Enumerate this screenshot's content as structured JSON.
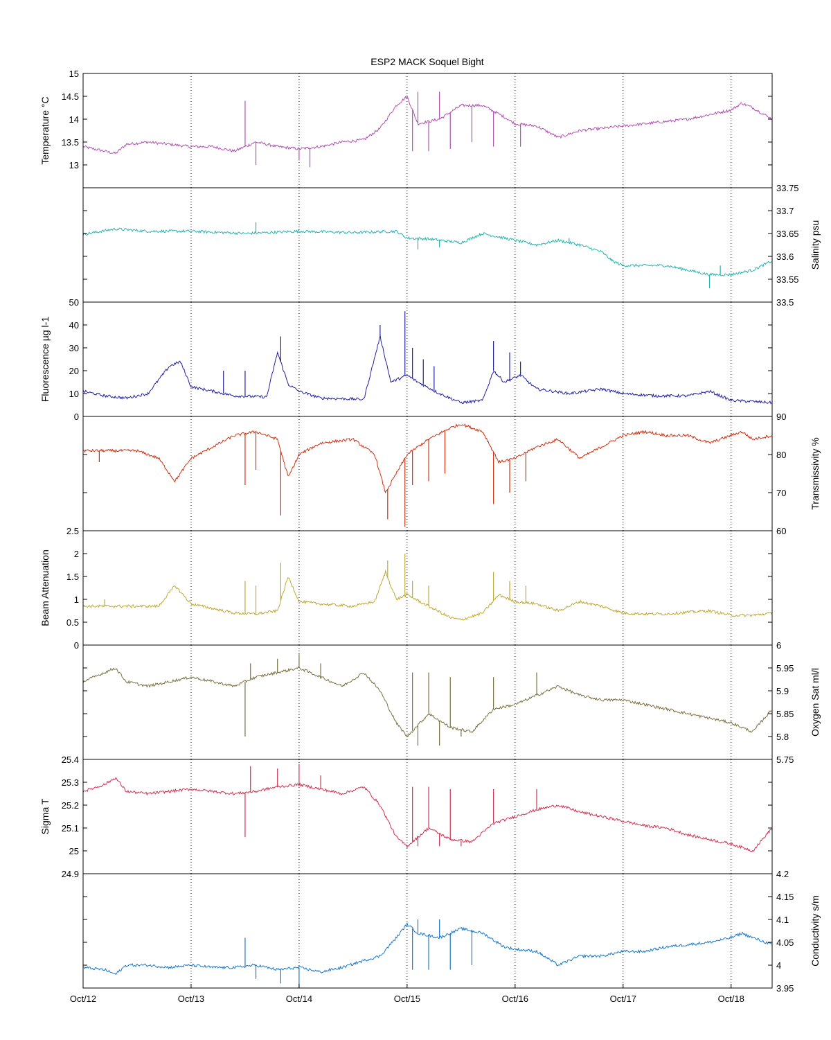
{
  "chart_data": {
    "type": "line",
    "title": "ESP2 MACK  Soquel Bight",
    "x_tick_labels": [
      "Oct/12",
      "Oct/13",
      "Oct/14",
      "Oct/15",
      "Oct/16",
      "Oct/17",
      "Oct/18"
    ],
    "xlim_days": [
      0,
      6.38
    ],
    "grid": "vertical dotted lines at each x tick",
    "panels": [
      {
        "ylabel": "Temperature °C",
        "axis_side": "left",
        "color": "#b050b0",
        "ylim": [
          12.5,
          15
        ],
        "yticks": [
          13,
          13.5,
          14,
          14.5,
          15
        ],
        "x": [
          0,
          0.1,
          0.2,
          0.3,
          0.4,
          0.6,
          0.8,
          1.0,
          1.2,
          1.4,
          1.6,
          1.8,
          2.0,
          2.2,
          2.4,
          2.6,
          2.75,
          2.9,
          3.0,
          3.1,
          3.3,
          3.5,
          3.7,
          3.9,
          4.0,
          4.2,
          4.4,
          4.6,
          4.8,
          5.0,
          5.2,
          5.4,
          5.6,
          5.8,
          6.0,
          6.1,
          6.2,
          6.38
        ],
        "y": [
          13.4,
          13.35,
          13.3,
          13.25,
          13.45,
          13.5,
          13.45,
          13.4,
          13.4,
          13.3,
          13.5,
          13.4,
          13.35,
          13.4,
          13.5,
          13.55,
          13.8,
          14.3,
          14.5,
          13.9,
          14.0,
          14.3,
          14.3,
          14.05,
          13.9,
          13.85,
          13.6,
          13.75,
          13.8,
          13.85,
          13.9,
          13.95,
          14.0,
          14.1,
          14.2,
          14.35,
          14.25,
          14.0
        ],
        "spikes": [
          [
            1.5,
            14.4
          ],
          [
            1.6,
            13.0
          ],
          [
            2.0,
            13.1
          ],
          [
            2.1,
            12.95
          ],
          [
            3.05,
            13.3
          ],
          [
            3.1,
            14.6
          ],
          [
            3.2,
            13.3
          ],
          [
            3.3,
            14.6
          ],
          [
            3.4,
            13.35
          ],
          [
            3.6,
            13.5
          ],
          [
            3.8,
            13.4
          ],
          [
            4.05,
            13.4
          ]
        ]
      },
      {
        "ylabel": "Salinity psu",
        "axis_side": "right",
        "color": "#28b4b0",
        "ylim": [
          33.5,
          33.75
        ],
        "yticks": [
          33.5,
          33.55,
          33.6,
          33.65,
          33.7,
          33.75
        ],
        "x": [
          0,
          0.3,
          0.6,
          1.0,
          1.5,
          2.0,
          2.5,
          2.9,
          3.0,
          3.2,
          3.5,
          3.7,
          3.9,
          4.2,
          4.4,
          4.6,
          4.8,
          4.9,
          5.0,
          5.2,
          5.4,
          5.6,
          5.8,
          6.0,
          6.2,
          6.38
        ],
        "y": [
          33.648,
          33.66,
          33.655,
          33.655,
          33.65,
          33.655,
          33.652,
          33.655,
          33.64,
          33.638,
          33.63,
          33.65,
          33.64,
          33.625,
          33.635,
          33.625,
          33.61,
          33.59,
          33.58,
          33.58,
          33.58,
          33.57,
          33.56,
          33.56,
          33.57,
          33.59
        ],
        "spikes": [
          [
            1.6,
            33.675
          ],
          [
            3.1,
            33.615
          ],
          [
            3.3,
            33.62
          ],
          [
            4.5,
            33.64
          ],
          [
            5.8,
            33.53
          ],
          [
            5.9,
            33.58
          ]
        ]
      },
      {
        "ylabel": "Fluorescence µg l-1",
        "axis_side": "left",
        "color": "#2020a0",
        "ylim": [
          0,
          50
        ],
        "yticks": [
          0,
          10,
          20,
          30,
          40,
          50
        ],
        "x": [
          0,
          0.2,
          0.4,
          0.6,
          0.8,
          0.9,
          1.0,
          1.2,
          1.4,
          1.7,
          1.8,
          1.9,
          2.0,
          2.2,
          2.6,
          2.75,
          2.85,
          3.0,
          3.1,
          3.3,
          3.5,
          3.7,
          3.8,
          3.9,
          4.05,
          4.2,
          4.5,
          4.8,
          5.0,
          5.3,
          5.6,
          5.8,
          6.0,
          6.2,
          6.38
        ],
        "y": [
          11,
          9,
          8,
          10,
          22,
          24,
          13,
          11,
          9,
          8.5,
          28,
          14,
          11,
          8,
          7.5,
          35,
          15,
          18,
          15,
          10,
          6,
          7,
          20,
          15,
          18,
          12,
          10,
          12,
          10,
          9,
          9,
          11,
          7,
          6.5,
          6
        ],
        "spikes": [
          [
            1.3,
            20
          ],
          [
            1.5,
            20
          ],
          [
            1.83,
            35
          ],
          [
            2.75,
            40
          ],
          [
            2.98,
            46
          ],
          [
            3.05,
            30
          ],
          [
            3.15,
            25
          ],
          [
            3.25,
            22
          ],
          [
            3.8,
            33
          ],
          [
            3.95,
            28
          ],
          [
            4.05,
            24
          ]
        ]
      },
      {
        "ylabel": "Transmissivity %",
        "axis_side": "right",
        "color": "#d03010",
        "ylim": [
          60,
          90
        ],
        "yticks": [
          60,
          70,
          80,
          90
        ],
        "x": [
          0,
          0.3,
          0.5,
          0.7,
          0.85,
          1.0,
          1.2,
          1.4,
          1.6,
          1.8,
          1.9,
          2.0,
          2.2,
          2.5,
          2.7,
          2.8,
          3.0,
          3.2,
          3.4,
          3.5,
          3.7,
          3.85,
          4.0,
          4.2,
          4.4,
          4.6,
          4.8,
          5.0,
          5.2,
          5.4,
          5.6,
          5.8,
          6.0,
          6.1,
          6.2,
          6.38
        ],
        "y": [
          81,
          81,
          81,
          79,
          73,
          79,
          82,
          85,
          86,
          84,
          74,
          80,
          83,
          84,
          80,
          70,
          80,
          84,
          87,
          88,
          86,
          78,
          79,
          82,
          84,
          79,
          82,
          85,
          86,
          85,
          85,
          83,
          85,
          86,
          84,
          85
        ],
        "spikes": [
          [
            0.15,
            78
          ],
          [
            1.5,
            72
          ],
          [
            1.6,
            76
          ],
          [
            1.83,
            64
          ],
          [
            2.82,
            63
          ],
          [
            2.98,
            61
          ],
          [
            3.05,
            72
          ],
          [
            3.2,
            73
          ],
          [
            3.35,
            75
          ],
          [
            3.8,
            67
          ],
          [
            3.95,
            70
          ],
          [
            4.1,
            73
          ]
        ]
      },
      {
        "ylabel": "Beam Attenuation",
        "axis_side": "left",
        "color": "#c0a830",
        "ylim": [
          0,
          2.5
        ],
        "yticks": [
          0,
          0.5,
          1,
          1.5,
          2,
          2.5
        ],
        "x": [
          0,
          0.3,
          0.5,
          0.7,
          0.85,
          1.0,
          1.2,
          1.4,
          1.6,
          1.8,
          1.9,
          2.0,
          2.2,
          2.5,
          2.7,
          2.8,
          2.9,
          3.0,
          3.2,
          3.4,
          3.5,
          3.7,
          3.85,
          4.0,
          4.2,
          4.4,
          4.6,
          4.8,
          5.0,
          5.2,
          5.4,
          5.6,
          5.8,
          6.0,
          6.2,
          6.38
        ],
        "y": [
          0.85,
          0.85,
          0.85,
          0.85,
          1.3,
          0.9,
          0.8,
          0.7,
          0.68,
          0.75,
          1.5,
          0.95,
          0.9,
          0.85,
          0.95,
          1.6,
          1.0,
          1.1,
          0.85,
          0.6,
          0.55,
          0.7,
          1.1,
          0.95,
          0.9,
          0.75,
          0.95,
          0.85,
          0.7,
          0.68,
          0.68,
          0.72,
          0.75,
          0.65,
          0.65,
          0.7
        ],
        "spikes": [
          [
            0.2,
            1.0
          ],
          [
            1.5,
            1.4
          ],
          [
            1.6,
            1.3
          ],
          [
            1.83,
            1.8
          ],
          [
            2.82,
            1.85
          ],
          [
            2.98,
            2.0
          ],
          [
            3.05,
            1.4
          ],
          [
            3.2,
            1.3
          ],
          [
            3.8,
            1.6
          ],
          [
            3.95,
            1.4
          ],
          [
            4.1,
            1.3
          ]
        ]
      },
      {
        "ylabel": "Oxygen Sat ml/l",
        "axis_side": "right",
        "color": "#7a7040",
        "ylim": [
          5.75,
          6
        ],
        "yticks": [
          5.75,
          5.8,
          5.85,
          5.9,
          5.95,
          6
        ],
        "x": [
          0,
          0.2,
          0.3,
          0.4,
          0.6,
          0.8,
          1.0,
          1.2,
          1.4,
          1.6,
          1.8,
          2.0,
          2.2,
          2.4,
          2.6,
          2.75,
          2.9,
          3.0,
          3.2,
          3.4,
          3.6,
          3.8,
          4.0,
          4.2,
          4.4,
          4.6,
          4.8,
          5.0,
          5.2,
          5.4,
          5.6,
          5.8,
          6.0,
          6.2,
          6.38
        ],
        "y": [
          5.92,
          5.94,
          5.95,
          5.92,
          5.91,
          5.92,
          5.93,
          5.92,
          5.91,
          5.93,
          5.94,
          5.95,
          5.93,
          5.91,
          5.94,
          5.9,
          5.83,
          5.8,
          5.85,
          5.82,
          5.81,
          5.86,
          5.87,
          5.89,
          5.91,
          5.89,
          5.88,
          5.88,
          5.87,
          5.86,
          5.85,
          5.84,
          5.83,
          5.81,
          5.86
        ],
        "spikes": [
          [
            1.5,
            5.8
          ],
          [
            1.55,
            5.96
          ],
          [
            1.8,
            5.97
          ],
          [
            2.0,
            5.98
          ],
          [
            2.2,
            5.96
          ],
          [
            3.05,
            5.94
          ],
          [
            3.1,
            5.78
          ],
          [
            3.2,
            5.94
          ],
          [
            3.3,
            5.78
          ],
          [
            3.4,
            5.93
          ],
          [
            3.5,
            5.8
          ],
          [
            3.8,
            5.93
          ],
          [
            4.2,
            5.94
          ]
        ]
      },
      {
        "ylabel": "Sigma T",
        "axis_side": "left",
        "color": "#d03050",
        "ylim": [
          24.9,
          25.4
        ],
        "yticks": [
          24.9,
          25,
          25.1,
          25.2,
          25.3,
          25.4
        ],
        "x": [
          0,
          0.2,
          0.3,
          0.4,
          0.6,
          0.8,
          1.0,
          1.2,
          1.4,
          1.6,
          1.8,
          2.0,
          2.2,
          2.4,
          2.6,
          2.75,
          2.9,
          3.0,
          3.2,
          3.4,
          3.6,
          3.8,
          4.0,
          4.2,
          4.4,
          4.6,
          4.8,
          5.0,
          5.2,
          5.4,
          5.6,
          5.8,
          6.0,
          6.2,
          6.38
        ],
        "y": [
          25.26,
          25.29,
          25.32,
          25.26,
          25.25,
          25.26,
          25.27,
          25.26,
          25.25,
          25.26,
          25.28,
          25.29,
          25.27,
          25.25,
          25.28,
          25.2,
          25.06,
          25.02,
          25.1,
          25.05,
          25.04,
          25.12,
          25.15,
          25.18,
          25.2,
          25.17,
          25.15,
          25.13,
          25.11,
          25.1,
          25.07,
          25.05,
          25.03,
          25.0,
          25.1
        ],
        "spikes": [
          [
            1.5,
            25.06
          ],
          [
            1.55,
            25.37
          ],
          [
            1.8,
            25.36
          ],
          [
            2.0,
            25.38
          ],
          [
            2.2,
            25.33
          ],
          [
            3.05,
            25.28
          ],
          [
            3.1,
            25.02
          ],
          [
            3.2,
            25.28
          ],
          [
            3.3,
            25.02
          ],
          [
            3.4,
            25.27
          ],
          [
            3.5,
            25.02
          ],
          [
            3.8,
            25.27
          ],
          [
            4.2,
            25.27
          ]
        ]
      },
      {
        "ylabel": "Conductivity s/m",
        "axis_side": "right",
        "color": "#1a78c8",
        "ylim": [
          3.95,
          4.2
        ],
        "yticks": [
          3.95,
          4,
          4.05,
          4.1,
          4.15,
          4.2
        ],
        "x": [
          0,
          0.2,
          0.3,
          0.4,
          0.6,
          0.8,
          1.0,
          1.2,
          1.4,
          1.6,
          1.8,
          2.0,
          2.2,
          2.4,
          2.6,
          2.75,
          2.9,
          3.0,
          3.1,
          3.3,
          3.5,
          3.7,
          3.9,
          4.0,
          4.2,
          4.4,
          4.6,
          4.8,
          5.0,
          5.2,
          5.4,
          5.6,
          5.8,
          6.0,
          6.1,
          6.2,
          6.38
        ],
        "y": [
          3.995,
          3.99,
          3.98,
          4.0,
          4.0,
          3.995,
          4.0,
          3.995,
          3.995,
          4.0,
          3.99,
          3.995,
          3.985,
          3.995,
          4.01,
          4.02,
          4.06,
          4.09,
          4.07,
          4.06,
          4.08,
          4.07,
          4.04,
          4.035,
          4.03,
          4.0,
          4.02,
          4.02,
          4.03,
          4.03,
          4.04,
          4.045,
          4.05,
          4.06,
          4.07,
          4.06,
          4.045
        ],
        "spikes": [
          [
            1.5,
            4.06
          ],
          [
            1.6,
            3.97
          ],
          [
            1.83,
            3.96
          ],
          [
            2.0,
            3.95
          ],
          [
            3.05,
            3.99
          ],
          [
            3.1,
            4.1
          ],
          [
            3.2,
            3.99
          ],
          [
            3.3,
            4.1
          ],
          [
            3.4,
            3.99
          ],
          [
            3.6,
            4.0
          ]
        ]
      }
    ]
  }
}
